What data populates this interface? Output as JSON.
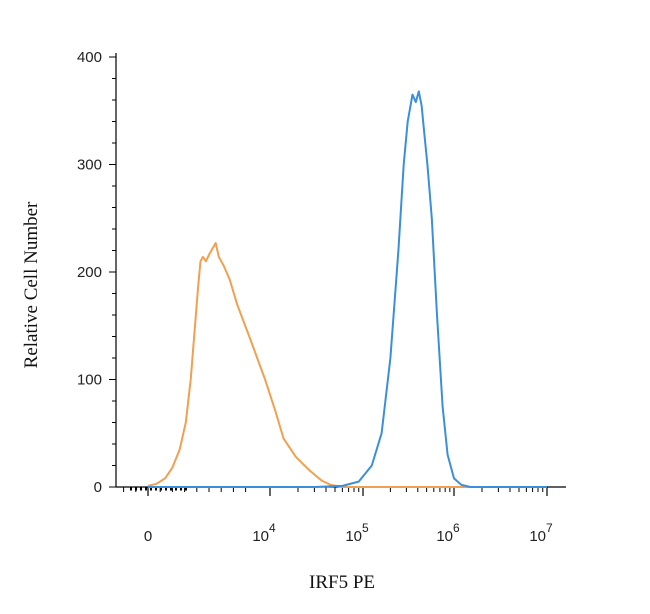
{
  "chart_data": {
    "type": "line",
    "title": "",
    "xlabel": "IRF5 PE",
    "ylabel": "Relative Cell Number",
    "x_scale": "biexponential",
    "y_scale": "linear",
    "ylim": [
      0,
      400
    ],
    "y_ticks": [
      {
        "value": 0,
        "label": "0"
      },
      {
        "value": 100,
        "label": "100"
      },
      {
        "value": 200,
        "label": "200"
      },
      {
        "value": 300,
        "label": "300"
      },
      {
        "value": 400,
        "label": "400"
      }
    ],
    "x_ticks": [
      {
        "value": 0,
        "label": "0",
        "exp": ""
      },
      {
        "value": 10000,
        "label": "10",
        "exp": "4"
      },
      {
        "value": 100000,
        "label": "10",
        "exp": "5"
      },
      {
        "value": 1000000,
        "label": "10",
        "exp": "6"
      },
      {
        "value": 10000000,
        "label": "10",
        "exp": "7"
      }
    ],
    "grid": false,
    "legend": "none",
    "series": [
      {
        "color": "#f0a050",
        "points": [
          [
            0,
            1
          ],
          [
            700,
            3
          ],
          [
            1400,
            8
          ],
          [
            2000,
            18
          ],
          [
            2600,
            35
          ],
          [
            3100,
            60
          ],
          [
            3500,
            100
          ],
          [
            3850,
            150
          ],
          [
            4100,
            185
          ],
          [
            4300,
            210
          ],
          [
            4500,
            214
          ],
          [
            4750,
            210
          ],
          [
            5000,
            216
          ],
          [
            5300,
            222
          ],
          [
            5550,
            227
          ],
          [
            5800,
            214
          ],
          [
            6200,
            206
          ],
          [
            6700,
            193
          ],
          [
            7300,
            170
          ],
          [
            8300,
            140
          ],
          [
            9600,
            100
          ],
          [
            11500,
            70
          ],
          [
            14000,
            45
          ],
          [
            19000,
            28
          ],
          [
            27000,
            15
          ],
          [
            36000,
            6
          ],
          [
            45000,
            2
          ],
          [
            60000,
            0
          ],
          [
            2000000,
            0
          ],
          [
            10000000,
            0
          ]
        ]
      },
      {
        "color": "#3b8fd8",
        "points": [
          [
            0,
            0
          ],
          [
            30000,
            0
          ],
          [
            60000,
            1
          ],
          [
            90000,
            5
          ],
          [
            125000,
            20
          ],
          [
            160000,
            50
          ],
          [
            200000,
            120
          ],
          [
            245000,
            220
          ],
          [
            280000,
            300
          ],
          [
            310000,
            340
          ],
          [
            350000,
            365
          ],
          [
            380000,
            358
          ],
          [
            410000,
            368
          ],
          [
            440000,
            355
          ],
          [
            470000,
            330
          ],
          [
            510000,
            300
          ],
          [
            570000,
            250
          ],
          [
            650000,
            160
          ],
          [
            750000,
            75
          ],
          [
            850000,
            30
          ],
          [
            1000000,
            8
          ],
          [
            1200000,
            2
          ],
          [
            1500000,
            0
          ],
          [
            10000000,
            0
          ]
        ]
      }
    ]
  }
}
